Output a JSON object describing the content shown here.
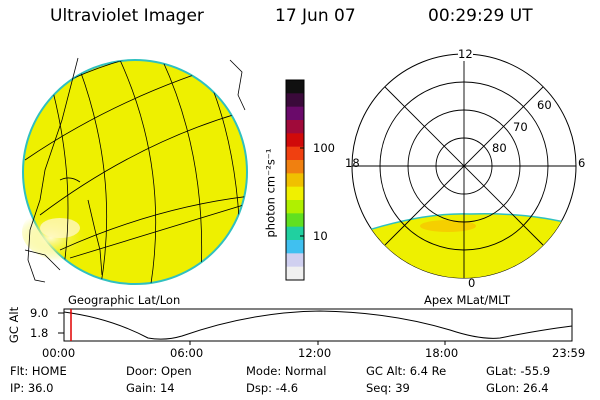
{
  "header": {
    "instrument": "Ultraviolet Imager",
    "date": "17 Jun 07",
    "time": "00:29:29 UT"
  },
  "colorbar": {
    "unit_label": "photon cm⁻²s⁻¹",
    "ticks": [
      "100",
      "10"
    ],
    "colors": [
      "#101010",
      "#3a0a3a",
      "#6a0a6a",
      "#a00a3a",
      "#d00a0a",
      "#f04010",
      "#f08010",
      "#f0c000",
      "#f0f000",
      "#b0f000",
      "#60e020",
      "#20d0a0",
      "#40c0f0",
      "#d0d0f0",
      "#f0f0f0"
    ]
  },
  "geo_panel": {
    "label": "Geographic Lat/Lon"
  },
  "polar_panel": {
    "label": "Apex MLat/MLT",
    "mlt_labels": {
      "top": "12",
      "left": "18",
      "right": "6",
      "bottom": "0"
    },
    "lat_labels": [
      "60",
      "70",
      "80"
    ]
  },
  "altitude_plot": {
    "ylabel": "GC Alt",
    "yticks": [
      "9.0",
      "1.8"
    ],
    "xticks": [
      "00:00",
      "06:00",
      "12:00",
      "18:00",
      "23:59"
    ]
  },
  "status": {
    "flt": "Flt: HOME",
    "ip": "IP: 36.0",
    "door": "Door: Open",
    "gain": "Gain: 14",
    "mode": "Mode: Normal",
    "dsp": "Dsp:     -4.6",
    "gcalt": "GC Alt: 6.4 Re",
    "seq": "Seq: 39",
    "glat": "GLat:    -55.9",
    "glon": "GLon:    26.4"
  },
  "colors": {
    "aurora_fill": "#eef000",
    "edge": "#40c0c0",
    "marker": "#e00000"
  }
}
